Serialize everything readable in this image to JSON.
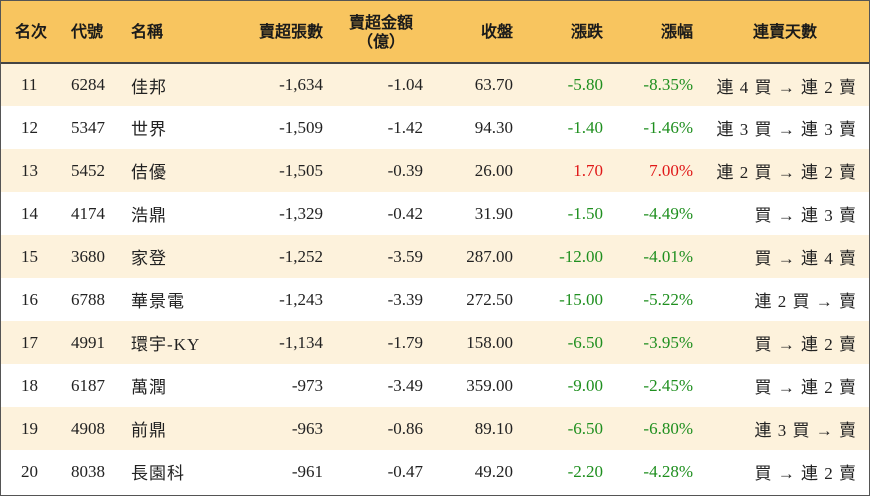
{
  "table": {
    "headers": {
      "rank": "名次",
      "code": "代號",
      "name": "名稱",
      "net_sell_lots": "賣超張數",
      "net_sell_amount_line1": "賣超金額",
      "net_sell_amount_line2": "（億）",
      "close": "收盤",
      "change": "漲跌",
      "change_pct": "漲幅",
      "streak": "連賣天數"
    },
    "colors": {
      "header_bg": "#f8c55f",
      "shade_row": "#fdf2dc",
      "down": "#1f8f1f",
      "up": "#e01818"
    },
    "rows": [
      {
        "rank": "11",
        "code": "6284",
        "name": "佳邦",
        "lots": "-1,634",
        "amount": "-1.04",
        "close": "63.70",
        "change": "-5.80",
        "pct": "-8.35%",
        "dir": "down",
        "streak": "連 4 買 → 連 2 賣"
      },
      {
        "rank": "12",
        "code": "5347",
        "name": "世界",
        "lots": "-1,509",
        "amount": "-1.42",
        "close": "94.30",
        "change": "-1.40",
        "pct": "-1.46%",
        "dir": "down",
        "streak": "連 3 買 → 連 3 賣"
      },
      {
        "rank": "13",
        "code": "5452",
        "name": "佶優",
        "lots": "-1,505",
        "amount": "-0.39",
        "close": "26.00",
        "change": "1.70",
        "pct": "7.00%",
        "dir": "up",
        "streak": "連 2 買 → 連 2 賣"
      },
      {
        "rank": "14",
        "code": "4174",
        "name": "浩鼎",
        "lots": "-1,329",
        "amount": "-0.42",
        "close": "31.90",
        "change": "-1.50",
        "pct": "-4.49%",
        "dir": "down",
        "streak": "買 → 連 3 賣"
      },
      {
        "rank": "15",
        "code": "3680",
        "name": "家登",
        "lots": "-1,252",
        "amount": "-3.59",
        "close": "287.00",
        "change": "-12.00",
        "pct": "-4.01%",
        "dir": "down",
        "streak": "買 → 連 4 賣"
      },
      {
        "rank": "16",
        "code": "6788",
        "name": "華景電",
        "lots": "-1,243",
        "amount": "-3.39",
        "close": "272.50",
        "change": "-15.00",
        "pct": "-5.22%",
        "dir": "down",
        "streak": "連 2 買 → 賣"
      },
      {
        "rank": "17",
        "code": "4991",
        "name": "環宇-KY",
        "lots": "-1,134",
        "amount": "-1.79",
        "close": "158.00",
        "change": "-6.50",
        "pct": "-3.95%",
        "dir": "down",
        "streak": "買 → 連 2 賣"
      },
      {
        "rank": "18",
        "code": "6187",
        "name": "萬潤",
        "lots": "-973",
        "amount": "-3.49",
        "close": "359.00",
        "change": "-9.00",
        "pct": "-2.45%",
        "dir": "down",
        "streak": "買 → 連 2 賣"
      },
      {
        "rank": "19",
        "code": "4908",
        "name": "前鼎",
        "lots": "-963",
        "amount": "-0.86",
        "close": "89.10",
        "change": "-6.50",
        "pct": "-6.80%",
        "dir": "down",
        "streak": "連 3 買 → 賣"
      },
      {
        "rank": "20",
        "code": "8038",
        "name": "長園科",
        "lots": "-961",
        "amount": "-0.47",
        "close": "49.20",
        "change": "-2.20",
        "pct": "-4.28%",
        "dir": "down",
        "streak": "買 → 連 2 賣"
      }
    ]
  }
}
